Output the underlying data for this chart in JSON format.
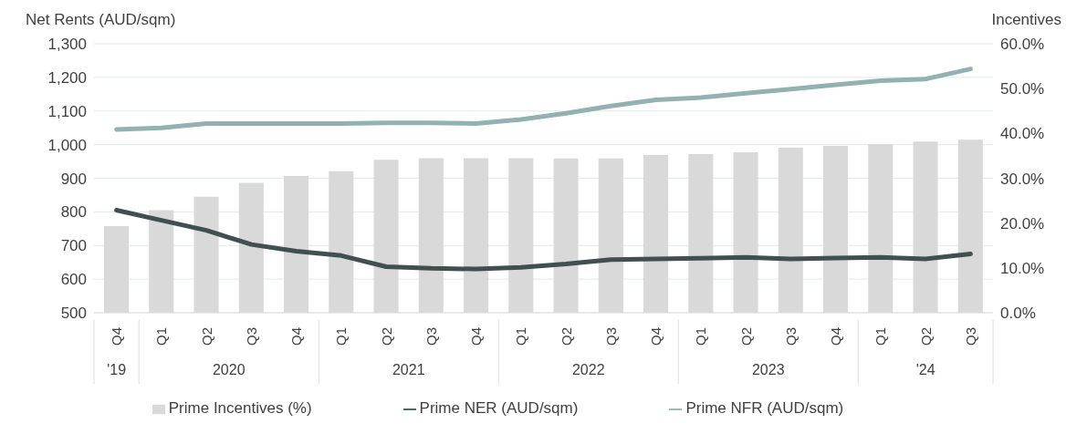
{
  "chart_data": {
    "type": "bar",
    "ylabel": "Net Rents (AUD/sqm)",
    "y2label": "Incentives",
    "categories": [
      "Q4",
      "Q1",
      "Q2",
      "Q3",
      "Q4",
      "Q1",
      "Q2",
      "Q3",
      "Q4",
      "Q1",
      "Q2",
      "Q3",
      "Q4",
      "Q1",
      "Q2",
      "Q3",
      "Q4",
      "Q1",
      "Q2",
      "Q3"
    ],
    "annotations": [
      "'19",
      "2020",
      "2021",
      "2022",
      "2023",
      "'24"
    ],
    "series": [
      {
        "name": "Prime Incentives (%)",
        "axis": "y2",
        "color": "#d9d9d9",
        "values": [
          19.3,
          22.9,
          25.9,
          29.0,
          30.5,
          31.6,
          34.1,
          34.5,
          34.5,
          34.5,
          34.4,
          34.4,
          35.2,
          35.4,
          35.8,
          36.8,
          37.2,
          37.6,
          38.2,
          38.6
        ]
      },
      {
        "name": "Prime NER (AUD/sqm)",
        "type": "line",
        "color": "#414f4f",
        "values": [
          805,
          775,
          745,
          703,
          683,
          670,
          637,
          632,
          630,
          635,
          645,
          658,
          660,
          662,
          665,
          660,
          663,
          665,
          660,
          675
        ]
      },
      {
        "name": "Prime NFR (AUD/sqm)",
        "type": "line",
        "color": "#93b1b1",
        "values": [
          1045,
          1050,
          1063,
          1063,
          1063,
          1063,
          1065,
          1065,
          1063,
          1075,
          1093,
          1115,
          1133,
          1140,
          1153,
          1165,
          1178,
          1190,
          1195,
          1225
        ]
      }
    ],
    "ylim": [
      500,
      1300
    ],
    "yticks": [
      500,
      600,
      700,
      800,
      900,
      {
        "value": 1000,
        "label": "1,000"
      },
      {
        "value": 1100,
        "label": "1,100"
      },
      {
        "value": 1200,
        "label": "1,200"
      },
      {
        "value": 1300,
        "label": "1,300"
      }
    ],
    "y2lim": [
      0,
      60
    ],
    "y2ticks": [
      {
        "value": 0,
        "label": "0.0%"
      },
      {
        "value": 10,
        "label": "10.0%"
      },
      {
        "value": 20,
        "label": "20.0%"
      },
      {
        "value": 30,
        "label": "30.0%"
      },
      {
        "value": 40,
        "label": "40.0%"
      },
      {
        "value": 50,
        "label": "50.0%"
      },
      {
        "value": 60,
        "label": "60.0%"
      }
    ],
    "grid": "y",
    "legend": "bottom",
    "marker": "none",
    "line_style": "solid"
  }
}
